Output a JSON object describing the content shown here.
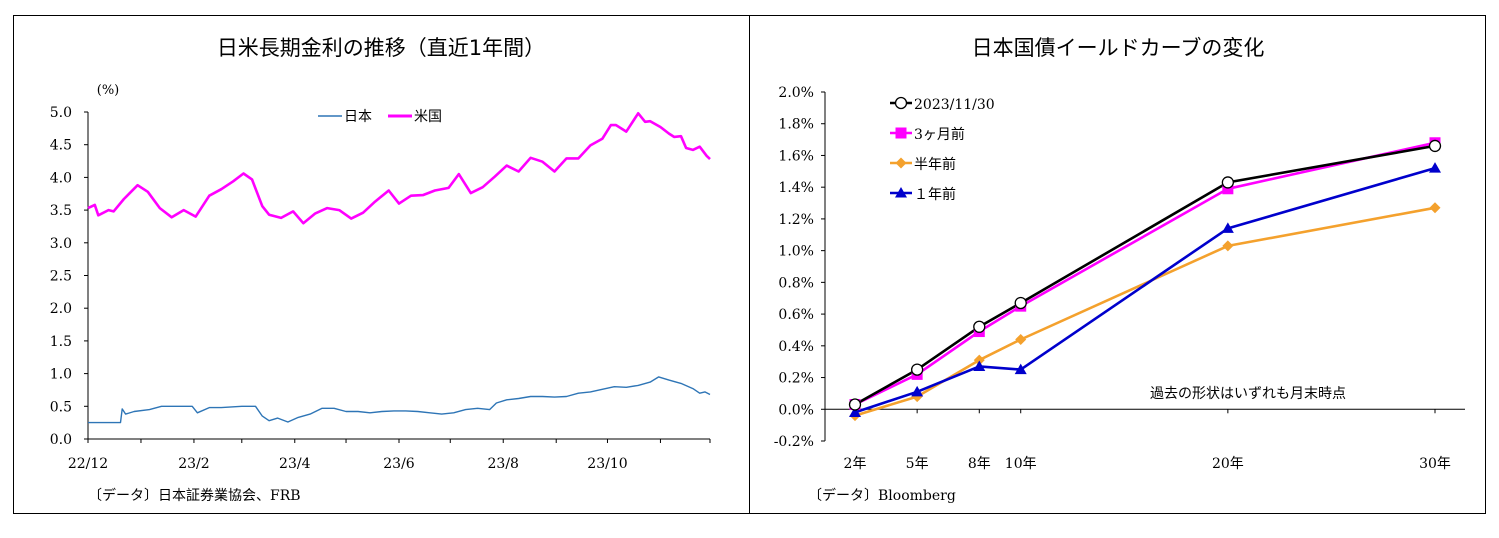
{
  "left_chart": {
    "title": "日米長期金利の推移（直近1年間）",
    "unit_label": "(%)",
    "source": "〔データ〕日本証券業協会、FRB",
    "chart_data": {
      "type": "line",
      "x_tick_labels": [
        "22/12",
        "23/2",
        "23/4",
        "23/6",
        "23/8",
        "23/10"
      ],
      "x_range": [
        "2022-12-01",
        "2023-11-30"
      ],
      "y_tick_labels": [
        "5.0",
        "4.5",
        "4.0",
        "3.5",
        "3.0",
        "2.5",
        "2.0",
        "1.5",
        "1.0",
        "0.5",
        "0.0"
      ],
      "ylim": [
        0.0,
        5.0
      ],
      "grid": false,
      "legend_position": "top-center",
      "series": [
        {
          "name": "日本",
          "color": "#2e75b6",
          "points": [
            [
              "2022-12-01",
              0.25
            ],
            [
              "2022-12-20",
              0.25
            ],
            [
              "2022-12-21",
              0.46
            ],
            [
              "2022-12-23",
              0.38
            ],
            [
              "2022-12-28",
              0.42
            ],
            [
              "2023-01-06",
              0.45
            ],
            [
              "2023-01-13",
              0.5
            ],
            [
              "2023-01-20",
              0.5
            ],
            [
              "2023-01-31",
              0.5
            ],
            [
              "2023-02-03",
              0.4
            ],
            [
              "2023-02-10",
              0.48
            ],
            [
              "2023-02-17",
              0.48
            ],
            [
              "2023-03-01",
              0.5
            ],
            [
              "2023-03-09",
              0.5
            ],
            [
              "2023-03-13",
              0.35
            ],
            [
              "2023-03-17",
              0.28
            ],
            [
              "2023-03-22",
              0.32
            ],
            [
              "2023-03-28",
              0.26
            ],
            [
              "2023-04-03",
              0.33
            ],
            [
              "2023-04-10",
              0.38
            ],
            [
              "2023-04-17",
              0.47
            ],
            [
              "2023-04-24",
              0.47
            ],
            [
              "2023-05-01",
              0.42
            ],
            [
              "2023-05-08",
              0.42
            ],
            [
              "2023-05-15",
              0.4
            ],
            [
              "2023-05-22",
              0.42
            ],
            [
              "2023-05-29",
              0.43
            ],
            [
              "2023-06-05",
              0.43
            ],
            [
              "2023-06-12",
              0.42
            ],
            [
              "2023-06-19",
              0.4
            ],
            [
              "2023-06-26",
              0.38
            ],
            [
              "2023-07-03",
              0.4
            ],
            [
              "2023-07-10",
              0.45
            ],
            [
              "2023-07-17",
              0.47
            ],
            [
              "2023-07-24",
              0.45
            ],
            [
              "2023-07-28",
              0.55
            ],
            [
              "2023-08-03",
              0.6
            ],
            [
              "2023-08-10",
              0.62
            ],
            [
              "2023-08-17",
              0.65
            ],
            [
              "2023-08-24",
              0.65
            ],
            [
              "2023-08-31",
              0.64
            ],
            [
              "2023-09-07",
              0.65
            ],
            [
              "2023-09-14",
              0.7
            ],
            [
              "2023-09-21",
              0.72
            ],
            [
              "2023-09-28",
              0.76
            ],
            [
              "2023-10-05",
              0.8
            ],
            [
              "2023-10-12",
              0.79
            ],
            [
              "2023-10-19",
              0.82
            ],
            [
              "2023-10-26",
              0.87
            ],
            [
              "2023-10-31",
              0.95
            ],
            [
              "2023-11-06",
              0.9
            ],
            [
              "2023-11-13",
              0.85
            ],
            [
              "2023-11-20",
              0.77
            ],
            [
              "2023-11-24",
              0.7
            ],
            [
              "2023-11-27",
              0.72
            ],
            [
              "2023-11-30",
              0.68
            ]
          ]
        },
        {
          "name": "米国",
          "color": "#ff00ff",
          "points": [
            [
              "2022-12-01",
              3.53
            ],
            [
              "2022-12-05",
              3.58
            ],
            [
              "2022-12-07",
              3.42
            ],
            [
              "2022-12-13",
              3.5
            ],
            [
              "2022-12-16",
              3.48
            ],
            [
              "2022-12-22",
              3.67
            ],
            [
              "2022-12-30",
              3.88
            ],
            [
              "2023-01-05",
              3.78
            ],
            [
              "2023-01-12",
              3.53
            ],
            [
              "2023-01-19",
              3.39
            ],
            [
              "2023-01-26",
              3.5
            ],
            [
              "2023-02-02",
              3.4
            ],
            [
              "2023-02-10",
              3.72
            ],
            [
              "2023-02-17",
              3.82
            ],
            [
              "2023-02-24",
              3.94
            ],
            [
              "2023-03-02",
              4.06
            ],
            [
              "2023-03-07",
              3.97
            ],
            [
              "2023-03-13",
              3.56
            ],
            [
              "2023-03-17",
              3.43
            ],
            [
              "2023-03-24",
              3.38
            ],
            [
              "2023-03-31",
              3.48
            ],
            [
              "2023-04-06",
              3.3
            ],
            [
              "2023-04-13",
              3.45
            ],
            [
              "2023-04-20",
              3.53
            ],
            [
              "2023-04-27",
              3.5
            ],
            [
              "2023-05-04",
              3.37
            ],
            [
              "2023-05-11",
              3.46
            ],
            [
              "2023-05-18",
              3.63
            ],
            [
              "2023-05-26",
              3.8
            ],
            [
              "2023-06-01",
              3.6
            ],
            [
              "2023-06-08",
              3.72
            ],
            [
              "2023-06-15",
              3.73
            ],
            [
              "2023-06-22",
              3.8
            ],
            [
              "2023-06-30",
              3.84
            ],
            [
              "2023-07-06",
              4.05
            ],
            [
              "2023-07-13",
              3.76
            ],
            [
              "2023-07-20",
              3.85
            ],
            [
              "2023-07-27",
              4.01
            ],
            [
              "2023-08-03",
              4.18
            ],
            [
              "2023-08-10",
              4.09
            ],
            [
              "2023-08-17",
              4.3
            ],
            [
              "2023-08-24",
              4.24
            ],
            [
              "2023-08-31",
              4.09
            ],
            [
              "2023-09-07",
              4.29
            ],
            [
              "2023-09-14",
              4.29
            ],
            [
              "2023-09-21",
              4.49
            ],
            [
              "2023-09-28",
              4.59
            ],
            [
              "2023-10-03",
              4.8
            ],
            [
              "2023-10-06",
              4.8
            ],
            [
              "2023-10-12",
              4.7
            ],
            [
              "2023-10-19",
              4.98
            ],
            [
              "2023-10-23",
              4.85
            ],
            [
              "2023-10-26",
              4.86
            ],
            [
              "2023-11-01",
              4.77
            ],
            [
              "2023-11-06",
              4.67
            ],
            [
              "2023-11-09",
              4.62
            ],
            [
              "2023-11-13",
              4.63
            ],
            [
              "2023-11-16",
              4.45
            ],
            [
              "2023-11-20",
              4.42
            ],
            [
              "2023-11-24",
              4.47
            ],
            [
              "2023-11-28",
              4.33
            ],
            [
              "2023-11-30",
              4.28
            ]
          ]
        }
      ]
    }
  },
  "right_chart": {
    "title": "日本国債イールドカーブの変化",
    "note": "過去の形状はいずれも月末時点",
    "source": "〔データ〕Bloomberg",
    "chart_data": {
      "type": "line",
      "x": [
        2,
        5,
        8,
        10,
        20,
        30
      ],
      "x_tick_labels": [
        "2年",
        "5年",
        "8年",
        "10年",
        "20年",
        "30年"
      ],
      "y_tick_labels": [
        "2.0%",
        "1.8%",
        "1.6%",
        "1.4%",
        "1.2%",
        "1.0%",
        "0.8%",
        "0.6%",
        "0.4%",
        "0.2%",
        "0.0%",
        "-0.2%"
      ],
      "ylim": [
        -0.2,
        2.0
      ],
      "grid": false,
      "legend_position": "top-left",
      "series": [
        {
          "name": "2023/11/30",
          "color": "#000000",
          "marker": "open-circle",
          "values": [
            0.03,
            0.25,
            0.52,
            0.67,
            1.43,
            1.66
          ]
        },
        {
          "name": "3ヶ月前",
          "color": "#ff00ff",
          "marker": "square",
          "values": [
            0.03,
            0.22,
            0.49,
            0.65,
            1.39,
            1.68
          ]
        },
        {
          "name": "半年前",
          "color": "#f4a12d",
          "marker": "diamond",
          "values": [
            -0.04,
            0.08,
            0.31,
            0.44,
            1.03,
            1.27
          ]
        },
        {
          "name": "１年前",
          "color": "#0000cc",
          "marker": "triangle",
          "values": [
            -0.02,
            0.11,
            0.27,
            0.25,
            1.14,
            1.52
          ]
        }
      ]
    }
  }
}
